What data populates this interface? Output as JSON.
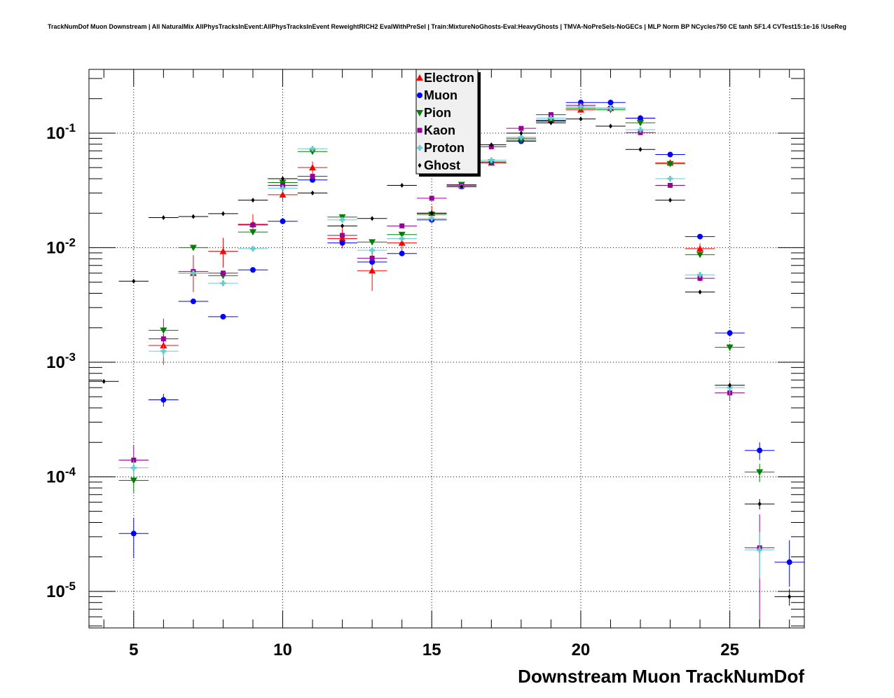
{
  "chart_data": {
    "type": "scatter",
    "title": "TrackNumDof Muon Downstream | All NaturalMix AllPhysTracksInEvent:AllPhysTracksInEvent ReweightRICH2 EvalWithPreSel | Train:MixtureNoGhosts-Eval:HeavyGhosts | TMVA-NoPreSels-NoGECs | MLP Norm BP NCycles750 CE tanh SF1.4 CVTest15:1e-16 !UseReg",
    "xlabel": "Downstream Muon TrackNumDof",
    "ylabel": "",
    "xlim": [
      3.5,
      27.5
    ],
    "ylim": [
      4.8e-06,
      0.36
    ],
    "yscale": "log",
    "x_ticks": [
      5,
      10,
      15,
      20,
      25
    ],
    "x_tick_labels": [
      "5",
      "10",
      "15",
      "20",
      "25"
    ],
    "y_ticks": [
      1e-05,
      0.0001,
      0.001,
      0.01,
      0.1
    ],
    "y_tick_labels": [
      {
        "base": "10",
        "exp": "-5"
      },
      {
        "base": "10",
        "exp": "-4"
      },
      {
        "base": "10",
        "exp": "-3"
      },
      {
        "base": "10",
        "exp": "-2"
      },
      {
        "base": "10",
        "exp": "-1"
      }
    ],
    "grid": true,
    "legend_position": "top-center",
    "series": [
      {
        "name": "Electron",
        "color": "#ff0000",
        "marker": "triangle-up",
        "points": [
          [
            6,
            0.0014,
            0.00045,
            0.001
          ],
          [
            7,
            0.006,
            0.0019,
            0.0026
          ],
          [
            8,
            0.0093,
            0.0026,
            0.0029
          ],
          [
            9,
            0.016,
            0.002,
            0.0036
          ],
          [
            10,
            0.029,
            0.0039,
            0.0046
          ],
          [
            11,
            0.05,
            0.0058,
            0.0065
          ],
          [
            12,
            0.012,
            0.0021,
            0.0027
          ],
          [
            13,
            0.0063,
            0.0021,
            0.0029
          ],
          [
            14,
            0.011,
            0.002,
            0.0025
          ],
          [
            15,
            0.02,
            0.0027,
            0.0031
          ],
          [
            16,
            0.035,
            0.002,
            0.002
          ],
          [
            17,
            0.055,
            0.003,
            0.003
          ],
          [
            18,
            0.09,
            0.004,
            0.004
          ],
          [
            19,
            0.13,
            0.004,
            0.004
          ],
          [
            20,
            0.16,
            0.004,
            0.004
          ],
          [
            21,
            0.165,
            0.004,
            0.004
          ],
          [
            22,
            0.135,
            0.004,
            0.004
          ],
          [
            23,
            0.055,
            0.0036,
            0.0036
          ],
          [
            24,
            0.0098,
            0.0011,
            0.0011
          ]
        ]
      },
      {
        "name": "Muon",
        "color": "#0000ff",
        "marker": "circle",
        "points": [
          [
            5,
            3.2e-05,
            1.25e-05,
            1.2e-05
          ],
          [
            6,
            0.00047,
            6e-05,
            6e-05
          ],
          [
            7,
            0.0034,
            0.00016,
            0.00016
          ],
          [
            8,
            0.0025,
            0.00012,
            0.00012
          ],
          [
            9,
            0.0064,
            0.0002,
            0.0002
          ],
          [
            10,
            0.017,
            0.0004,
            0.0004
          ],
          [
            11,
            0.039,
            0.0006,
            0.0006
          ],
          [
            12,
            0.011,
            0.0003,
            0.0003
          ],
          [
            13,
            0.0075,
            0.0003,
            0.0003
          ],
          [
            14,
            0.0089,
            0.0003,
            0.0003
          ],
          [
            15,
            0.0175,
            0.0004,
            0.0004
          ],
          [
            16,
            0.034,
            0.0005,
            0.0005
          ],
          [
            17,
            0.056,
            0.0007,
            0.0007
          ],
          [
            18,
            0.085,
            0.0008,
            0.0008
          ],
          [
            19,
            0.128,
            0.001,
            0.001
          ],
          [
            20,
            0.185,
            0.001,
            0.001
          ],
          [
            21,
            0.185,
            0.001,
            0.001
          ],
          [
            22,
            0.135,
            0.001,
            0.001
          ],
          [
            23,
            0.065,
            0.0007,
            0.0007
          ],
          [
            24,
            0.0125,
            0.0003,
            0.0003
          ],
          [
            25,
            0.0018,
            0.00012,
            0.00012
          ],
          [
            26,
            0.00017,
            3e-05,
            3e-05
          ],
          [
            27,
            1.8e-05,
            7e-06,
            1e-05
          ]
        ]
      },
      {
        "name": "Pion",
        "color": "#008000",
        "marker": "triangle-down",
        "points": [
          [
            5,
            9.3e-05,
            2e-05,
            2e-05
          ],
          [
            6,
            0.0019,
            0.0001,
            0.0001
          ],
          [
            7,
            0.01,
            0.0002,
            0.0002
          ],
          [
            8,
            0.0057,
            0.0002,
            0.0002
          ],
          [
            9,
            0.0137,
            0.0003,
            0.0003
          ],
          [
            10,
            0.037,
            0.0005,
            0.0005
          ],
          [
            11,
            0.069,
            0.0007,
            0.0007
          ],
          [
            12,
            0.0185,
            0.0004,
            0.0004
          ],
          [
            13,
            0.0112,
            0.0003,
            0.0003
          ],
          [
            14,
            0.013,
            0.0003,
            0.0003
          ],
          [
            15,
            0.0195,
            0.0004,
            0.0004
          ],
          [
            16,
            0.0355,
            0.0005,
            0.0005
          ],
          [
            17,
            0.056,
            0.0006,
            0.0006
          ],
          [
            18,
            0.087,
            0.0008,
            0.0008
          ],
          [
            19,
            0.127,
            0.001,
            0.001
          ],
          [
            20,
            0.165,
            0.001,
            0.001
          ],
          [
            21,
            0.16,
            0.001,
            0.001
          ],
          [
            22,
            0.123,
            0.001,
            0.001
          ],
          [
            23,
            0.054,
            0.0006,
            0.0006
          ],
          [
            24,
            0.0087,
            0.0003,
            0.0003
          ],
          [
            25,
            0.00135,
            0.0001,
            0.0001
          ],
          [
            26,
            0.00011,
            2e-05,
            2e-05
          ]
        ]
      },
      {
        "name": "Kaon",
        "color": "#990099",
        "marker": "square",
        "points": [
          [
            5,
            0.00014,
            3e-05,
            5e-05
          ],
          [
            6,
            0.0016,
            0.00015,
            0.00015
          ],
          [
            7,
            0.0062,
            0.0003,
            0.0003
          ],
          [
            8,
            0.006,
            0.0003,
            0.0003
          ],
          [
            9,
            0.0158,
            0.0005,
            0.0005
          ],
          [
            10,
            0.035,
            0.0007,
            0.0007
          ],
          [
            11,
            0.042,
            0.0008,
            0.0008
          ],
          [
            12,
            0.0128,
            0.0004,
            0.0004
          ],
          [
            13,
            0.0081,
            0.0003,
            0.0003
          ],
          [
            14,
            0.0155,
            0.0004,
            0.0004
          ],
          [
            15,
            0.027,
            0.0006,
            0.0006
          ],
          [
            16,
            0.035,
            0.0006,
            0.0006
          ],
          [
            17,
            0.076,
            0.001,
            0.001
          ],
          [
            18,
            0.11,
            0.001,
            0.001
          ],
          [
            19,
            0.145,
            0.0012,
            0.0012
          ],
          [
            20,
            0.175,
            0.0013,
            0.0013
          ],
          [
            21,
            0.165,
            0.0013,
            0.0013
          ],
          [
            22,
            0.101,
            0.001,
            0.001
          ],
          [
            23,
            0.035,
            0.0006,
            0.0006
          ],
          [
            24,
            0.0054,
            0.0003,
            0.0003
          ],
          [
            25,
            0.00054,
            8e-05,
            8e-05
          ],
          [
            26,
            2.4e-05,
            1.9e-05,
            2.3e-05
          ]
        ]
      },
      {
        "name": "Proton",
        "color": "#66cccc",
        "marker": "cross",
        "points": [
          [
            5,
            0.00012,
            2e-05,
            2e-05
          ],
          [
            6,
            0.00125,
            0.00015,
            0.00015
          ],
          [
            7,
            0.006,
            0.0003,
            0.0003
          ],
          [
            8,
            0.0049,
            0.0003,
            0.0003
          ],
          [
            9,
            0.0098,
            0.0004,
            0.0004
          ],
          [
            10,
            0.033,
            0.0007,
            0.0007
          ],
          [
            11,
            0.073,
            0.001,
            0.001
          ],
          [
            12,
            0.0175,
            0.0005,
            0.0005
          ],
          [
            13,
            0.0095,
            0.0004,
            0.0004
          ],
          [
            14,
            0.012,
            0.0004,
            0.0004
          ],
          [
            15,
            0.018,
            0.0005,
            0.0005
          ],
          [
            16,
            0.034,
            0.0006,
            0.0006
          ],
          [
            17,
            0.058,
            0.0008,
            0.0008
          ],
          [
            18,
            0.092,
            0.001,
            0.001
          ],
          [
            19,
            0.135,
            0.0012,
            0.0012
          ],
          [
            20,
            0.17,
            0.0013,
            0.0013
          ],
          [
            21,
            0.165,
            0.0013,
            0.0013
          ],
          [
            22,
            0.107,
            0.001,
            0.001
          ],
          [
            23,
            0.04,
            0.0007,
            0.0007
          ],
          [
            24,
            0.0058,
            0.0003,
            0.0003
          ],
          [
            25,
            0.0006,
            8e-05,
            8e-05
          ],
          [
            26,
            2.3e-05,
            1e-05,
            1e-05
          ]
        ]
      },
      {
        "name": "Ghost",
        "color": "#000000",
        "marker": "diamond",
        "points": [
          [
            4,
            0.00068,
            2e-05,
            2e-05
          ],
          [
            5,
            0.0051,
            0.0001,
            0.0001
          ],
          [
            6,
            0.0183,
            0.0002,
            0.0002
          ],
          [
            7,
            0.0187,
            0.0002,
            0.0002
          ],
          [
            8,
            0.0198,
            0.0002,
            0.0002
          ],
          [
            9,
            0.026,
            0.0003,
            0.0003
          ],
          [
            10,
            0.04,
            0.0004,
            0.0004
          ],
          [
            11,
            0.03,
            0.0003,
            0.0003
          ],
          [
            12,
            0.0155,
            0.0002,
            0.0002
          ],
          [
            13,
            0.018,
            0.0002,
            0.0002
          ],
          [
            14,
            0.035,
            0.0003,
            0.0003
          ],
          [
            15,
            0.02,
            0.0002,
            0.0002
          ],
          [
            16,
            0.034,
            0.0003,
            0.0003
          ],
          [
            17,
            0.079,
            0.0005,
            0.0005
          ],
          [
            18,
            0.1,
            0.0005,
            0.0005
          ],
          [
            19,
            0.123,
            0.0006,
            0.0006
          ],
          [
            20,
            0.133,
            0.0006,
            0.0006
          ],
          [
            21,
            0.115,
            0.0005,
            0.0005
          ],
          [
            22,
            0.072,
            0.0004,
            0.0004
          ],
          [
            23,
            0.026,
            0.0003,
            0.0003
          ],
          [
            24,
            0.0041,
            0.0001,
            0.0001
          ],
          [
            25,
            0.00063,
            3e-05,
            3e-05
          ],
          [
            26,
            5.8e-05,
            6e-06,
            6e-06
          ],
          [
            27,
            9e-06,
            1.5e-06,
            1.5e-06
          ]
        ]
      }
    ]
  }
}
